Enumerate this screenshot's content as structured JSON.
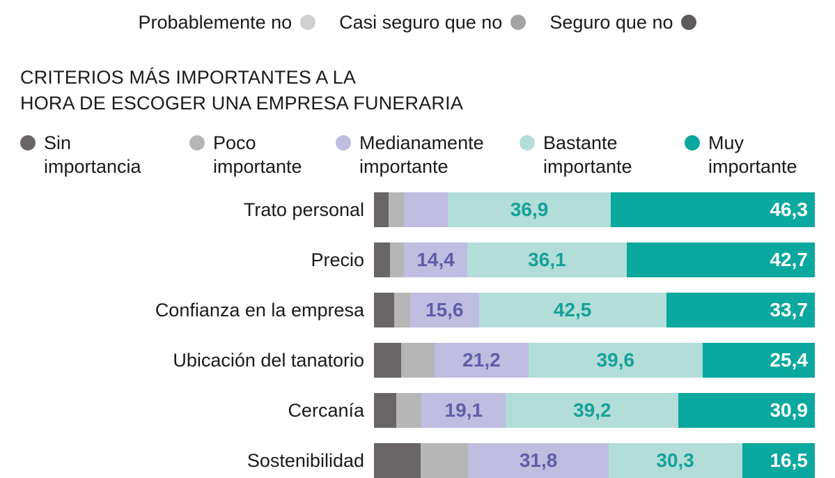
{
  "top_legend": [
    {
      "label": "Probablemente no",
      "color": "#cfcfcf"
    },
    {
      "label": "Casi seguro que no",
      "color": "#a3a3a3"
    },
    {
      "label": "Seguro que no",
      "color": "#5f5a5c"
    }
  ],
  "chart_data": {
    "type": "bar",
    "orientation": "horizontal",
    "stacked": true,
    "title_lines": [
      "CRITERIOS MÁS IMPORTANTES A LA",
      "HORA DE ESCOGER UNA EMPRESA FUNERARIA"
    ],
    "categories": [
      "Trato personal",
      "Precio",
      "Confianza en la empresa",
      "Ubicación del tanatorio",
      "Cercanía",
      "Sostenibilidad"
    ],
    "legend_placement": "top",
    "series": [
      {
        "name_lines": [
          "Sin",
          "importancia"
        ],
        "color": "#6a6567",
        "label_color": "#ffffff",
        "values": [
          3.3,
          3.6,
          4.6,
          6.2,
          5.1,
          10.6
        ],
        "labels": [
          "",
          "",
          "",
          "",
          "",
          ""
        ]
      },
      {
        "name_lines": [
          "Poco",
          "importante"
        ],
        "color": "#b7b6b6",
        "label_color": "#ffffff",
        "values": [
          3.5,
          3.2,
          3.6,
          7.6,
          5.7,
          10.8
        ],
        "labels": [
          "",
          "",
          "",
          "",
          "",
          ""
        ]
      },
      {
        "name_lines": [
          "Medianamente",
          "importante"
        ],
        "color": "#bfbde0",
        "label_color": "#625da8",
        "values": [
          10.0,
          14.4,
          15.6,
          21.2,
          19.1,
          31.8
        ],
        "labels": [
          "",
          "14,4",
          "15,6",
          "21,2",
          "19,1",
          "31,8"
        ]
      },
      {
        "name_lines": [
          "Bastante",
          "importante"
        ],
        "color": "#b3ddd8",
        "label_color": "#15a197",
        "values": [
          36.9,
          36.1,
          42.5,
          39.6,
          39.2,
          30.3
        ],
        "labels": [
          "36,9",
          "36,1",
          "42,5",
          "39,6",
          "39,2",
          "30,3"
        ]
      },
      {
        "name_lines": [
          "Muy",
          "importante"
        ],
        "color": "#0aa89e",
        "label_color": "#ffffff",
        "values": [
          46.3,
          42.7,
          33.7,
          25.4,
          30.9,
          16.5
        ],
        "labels": [
          "46,3",
          "42,7",
          "33,7",
          "25,4",
          "30,9",
          "16,5"
        ]
      }
    ],
    "xlim": [
      0,
      100
    ],
    "grid": false,
    "xlabel": "",
    "ylabel": ""
  }
}
